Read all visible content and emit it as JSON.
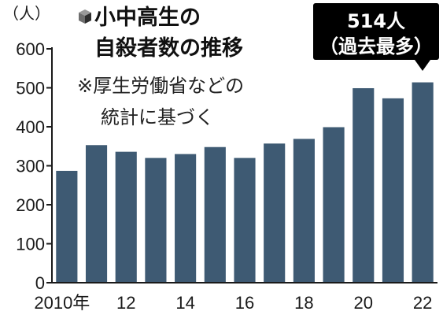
{
  "chart_data": {
    "type": "bar",
    "title": "小中高生の自殺者数の推移",
    "title_lines": [
      "小中高生の",
      "自殺者数の推移"
    ],
    "note_lines": [
      "※厚生労働省などの",
      "統計に基づく"
    ],
    "ylabel": "（人）",
    "callout_lines": [
      "514人",
      "（過去最多）"
    ],
    "categories": [
      "2010",
      "11",
      "12",
      "13",
      "14",
      "15",
      "16",
      "17",
      "18",
      "19",
      "20",
      "21",
      "22"
    ],
    "x_tick_labels": [
      "2010年",
      "",
      "12",
      "",
      "14",
      "",
      "16",
      "",
      "18",
      "",
      "20",
      "",
      "22"
    ],
    "values": [
      287,
      353,
      336,
      320,
      330,
      348,
      320,
      357,
      369,
      399,
      499,
      473,
      514
    ],
    "ylim": [
      0,
      600
    ],
    "yticks": [
      0,
      100,
      200,
      300,
      400,
      500,
      600
    ],
    "grid": false,
    "bar_color": "#3e5a73",
    "callout_color": "#000000"
  }
}
